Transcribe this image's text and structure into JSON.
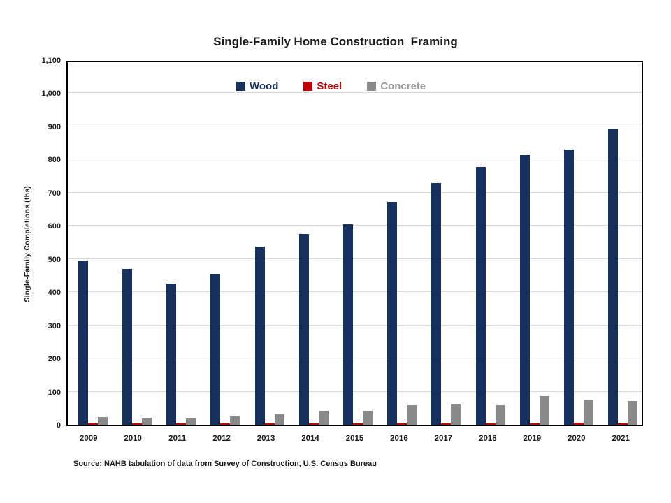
{
  "title": "Single-Family Home Construction  Framing",
  "source_note": "Source: NAHB tabulation of data from Survey of Construction, U.S. Census Bureau",
  "colors": {
    "wood": "#16305e",
    "steel": "#c00000",
    "concrete": "#8a8a8a",
    "concrete_legend_text": "#9b9b9b",
    "gridline": "#d9d9d9",
    "axis": "#000000",
    "text": "#1a1a1a"
  },
  "chart_data": {
    "type": "bar",
    "title": "Single-Family Home Construction  Framing",
    "categories": [
      "2009",
      "2010",
      "2011",
      "2012",
      "2013",
      "2014",
      "2015",
      "2016",
      "2017",
      "2018",
      "2019",
      "2020",
      "2021"
    ],
    "series": [
      {
        "name": "Wood",
        "color": "#16305e",
        "text_color": "#16305e",
        "values": [
          495,
          470,
          425,
          455,
          537,
          575,
          605,
          672,
          730,
          778,
          814,
          830,
          893
        ]
      },
      {
        "name": "Steel",
        "color": "#c00000",
        "text_color": "#c00000",
        "values": [
          4,
          4,
          3,
          3,
          4,
          4,
          4,
          3,
          4,
          3,
          5,
          6,
          4
        ]
      },
      {
        "name": "Concrete",
        "color": "#8a8a8a",
        "text_color": "#9b9b9b",
        "values": [
          23,
          22,
          20,
          26,
          31,
          42,
          43,
          60,
          61,
          58,
          86,
          76,
          71
        ]
      }
    ],
    "xlabel": "",
    "ylabel": "Single-Family Completions (ths)",
    "ylim": [
      0,
      1100
    ],
    "ytick_step": 100,
    "ytick_labels": [
      "0",
      "100",
      "200",
      "300",
      "400",
      "500",
      "600",
      "700",
      "800",
      "900",
      "1,000",
      "1,100"
    ],
    "grid": true,
    "legend_position": "top-center"
  }
}
